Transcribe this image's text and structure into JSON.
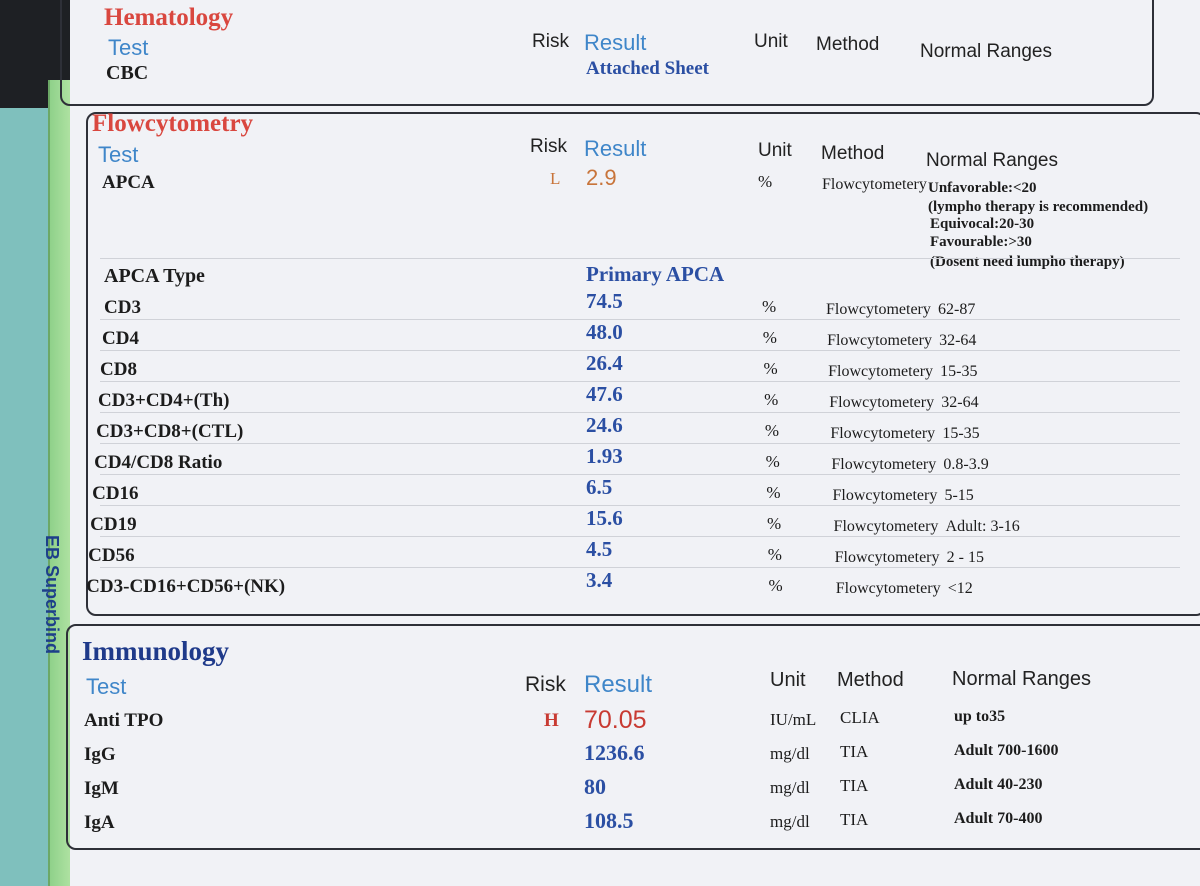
{
  "binder_brand": "EB Superbind",
  "headers": {
    "test": "Test",
    "risk": "Risk",
    "result": "Result",
    "unit": "Unit",
    "method": "Method",
    "normal_ranges": "Normal Ranges"
  },
  "hematology": {
    "title": "Hematology",
    "cbc": {
      "test": "CBC",
      "result": "Attached Sheet"
    }
  },
  "flowcytometry": {
    "title": "Flowcytometry",
    "apca": {
      "test": "APCA",
      "risk": "L",
      "result": "2.9",
      "unit": "%",
      "method": "Flowcytometery",
      "ranges": [
        "Unfavorable:<20",
        "(lympho therapy is recommended)",
        "Equivocal:20-30",
        "Favourable:>30",
        "(Dosent need lumpho therapy)"
      ]
    },
    "apca_type": {
      "test": "APCA Type",
      "result": "Primary APCA"
    },
    "rows": [
      {
        "test": "CD3",
        "result": "74.5",
        "unit": "%",
        "method": "Flowcytometery",
        "range": "62-87"
      },
      {
        "test": "CD4",
        "result": "48.0",
        "unit": "%",
        "method": "Flowcytometery",
        "range": "32-64"
      },
      {
        "test": "CD8",
        "result": "26.4",
        "unit": "%",
        "method": "Flowcytometery",
        "range": "15-35"
      },
      {
        "test": "CD3+CD4+(Th)",
        "result": "47.6",
        "unit": "%",
        "method": "Flowcytometery",
        "range": "32-64"
      },
      {
        "test": "CD3+CD8+(CTL)",
        "result": "24.6",
        "unit": "%",
        "method": "Flowcytometery",
        "range": "15-35"
      },
      {
        "test": "CD4/CD8 Ratio",
        "result": "1.93",
        "unit": "%",
        "method": "Flowcytometery",
        "range": "0.8-3.9"
      },
      {
        "test": "CD16",
        "result": "6.5",
        "unit": "%",
        "method": "Flowcytometery",
        "range": "5-15"
      },
      {
        "test": "CD19",
        "result": "15.6",
        "unit": "%",
        "method": "Flowcytometery",
        "range": "Adult: 3-16"
      },
      {
        "test": "CD56",
        "result": "4.5",
        "unit": "%",
        "method": "Flowcytometery",
        "range": "2 - 15"
      },
      {
        "test": "CD3-CD16+CD56+(NK)",
        "result": "3.4",
        "unit": "%",
        "method": "Flowcytometery",
        "range": "<12"
      }
    ]
  },
  "immunology": {
    "title": "Immunology",
    "rows": [
      {
        "test": "Anti TPO",
        "risk": "H",
        "result": "70.05",
        "unit": "IU/mL",
        "method": "CLIA",
        "range": "up to35"
      },
      {
        "test": "IgG",
        "risk": "",
        "result": "1236.6",
        "unit": "mg/dl",
        "method": "TIA",
        "range": "Adult 700-1600"
      },
      {
        "test": "IgM",
        "risk": "",
        "result": "80",
        "unit": "mg/dl",
        "method": "TIA",
        "range": "Adult 40-230"
      },
      {
        "test": "IgA",
        "risk": "",
        "result": "108.5",
        "unit": "mg/dl",
        "method": "TIA",
        "range": "Adult 70-400"
      }
    ]
  },
  "colors": {
    "section_title_red": "#d9473f",
    "section_title_blue": "#1f3a8a",
    "header_blue": "#3f86c9",
    "result_blue": "#2b4fa3",
    "risk_low": "#c8743a",
    "risk_high": "#c83a32"
  }
}
